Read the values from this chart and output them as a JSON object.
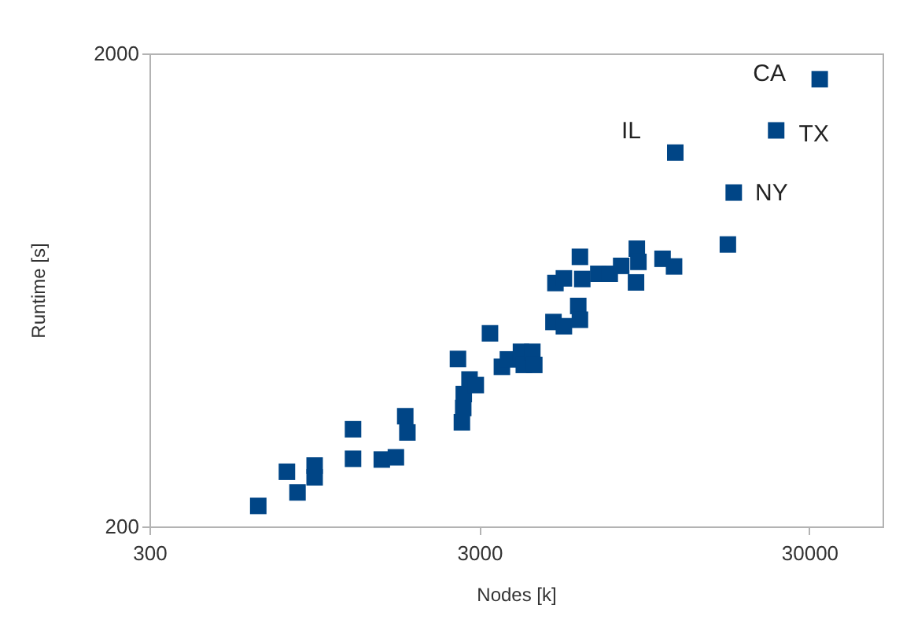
{
  "chart_data": {
    "type": "scatter",
    "xlabel": "Nodes [k]",
    "ylabel": "Runtime [s]",
    "log": "xy",
    "marker": "square",
    "grid": false,
    "xlim": [
      300,
      50000
    ],
    "xticks": [
      300,
      3000,
      30000
    ],
    "ylim": [
      200,
      2000
    ],
    "yticks": [
      200,
      2000
    ],
    "series": [
      {
        "color": "#004586",
        "x": [
          641,
          783,
          843,
          950,
          950,
          1242,
          1242,
          1518,
          1675,
          1788,
          1815,
          2583,
          2655,
          2680,
          2690,
          2800,
          2925,
          3230,
          3510,
          3660,
          4010,
          4090,
          4340,
          4400,
          5030,
          5410,
          5980,
          6050,
          5100,
          5410,
          6050,
          6150,
          6880,
          7450,
          8070,
          9000,
          9100,
          8950,
          10770,
          11670,
          11770,
          16990,
          17700,
          23800,
          32250
        ],
        "values": [
          221,
          261,
          236,
          269,
          254,
          321,
          278,
          277,
          280,
          342,
          316,
          452,
          332,
          356,
          381,
          409,
          398,
          512,
          435,
          451,
          468,
          439,
          468,
          439,
          541,
          530,
          585,
          547,
          654,
          669,
          743,
          667,
          684,
          684,
          711,
          773,
          725,
          656,
          736,
          709,
          1234,
          789,
          1016,
          1375,
          1764
        ]
      }
    ],
    "annotations": [
      {
        "text": "CA",
        "x": 32250,
        "y": 1764
      },
      {
        "text": "IL",
        "x": 11770,
        "y": 1234
      },
      {
        "text": "TX",
        "x": 23800,
        "y": 1375
      },
      {
        "text": "NY",
        "x": 17700,
        "y": 1016
      }
    ]
  }
}
